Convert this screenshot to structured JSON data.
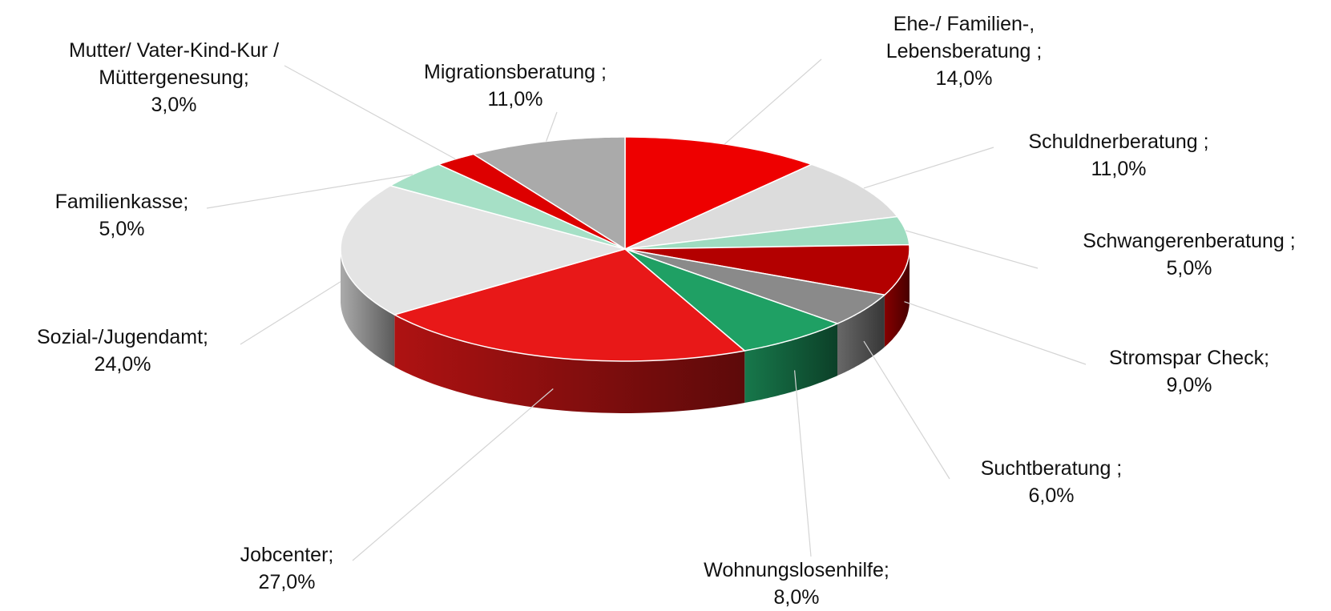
{
  "chart_data": {
    "type": "pie",
    "categories": [
      "Ehe-/ Familien-, Lebensberatung ;",
      "Schuldnerberatung ;",
      "Schwangerenberatung ;",
      "Stromspar Check;",
      "Suchtberatung ;",
      "Wohnungslosenhilfe;",
      "Jobcenter;",
      "Sozial-/Jugendamt;",
      "Familienkasse;",
      "Mutter/ Vater-Kind-Kur / Müttergenesung;",
      "Migrationsberatung ;"
    ],
    "values": [
      14,
      11,
      5,
      9,
      6,
      8,
      27,
      24,
      5,
      3,
      11
    ],
    "value_labels": [
      "14,0%",
      "11,0%",
      "5,0%",
      "9,0%",
      "6,0%",
      "8,0%",
      "27,0%",
      "24,0%",
      "5,0%",
      "3,0%",
      "11,0%"
    ],
    "colors": [
      "#ee0000",
      "#dcdcdc",
      "#9edcc0",
      "#b30000",
      "#8a8a8a",
      "#1fa064",
      "#e81818",
      "#e4e4e4",
      "#a6e0c6",
      "#dd0000",
      "#aaaaaa"
    ]
  }
}
